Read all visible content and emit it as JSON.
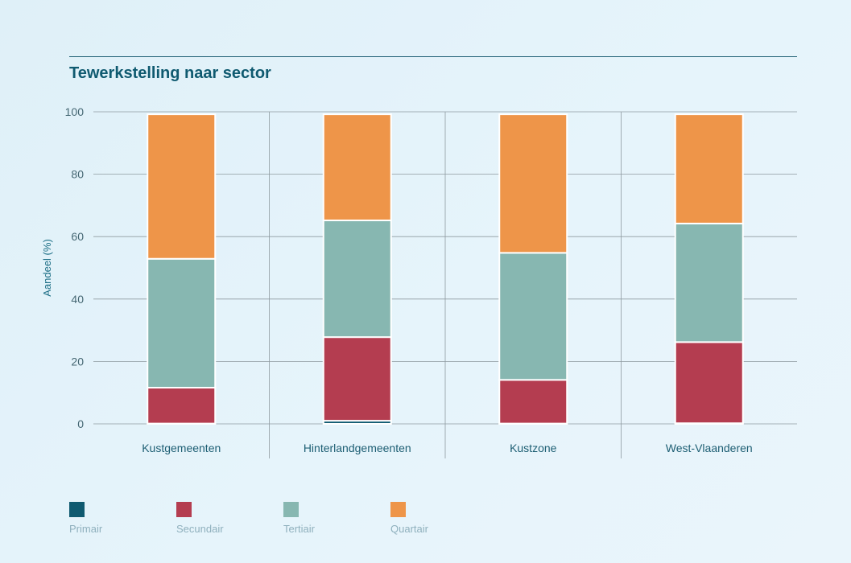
{
  "title": "Tewerkstelling naar sector",
  "chart_data": {
    "type": "bar",
    "stacked": true,
    "title": "Tewerkstelling naar sector",
    "ylabel": "Aandeel (%)",
    "xlabel": "",
    "ylim": [
      0,
      100
    ],
    "yticks": [
      0,
      20,
      40,
      60,
      80,
      100
    ],
    "grid": true,
    "legend_position": "bottom-left",
    "categories": [
      "Kustgemeenten",
      "Hinterlandgemeenten",
      "Kustzone",
      "West-Vlaanderen"
    ],
    "series": [
      {
        "name": "Primair",
        "color": "#0f5a70",
        "values": [
          0.1,
          1.0,
          0.1,
          0.2
        ]
      },
      {
        "name": "Secundair",
        "color": "#b43d50",
        "values": [
          11.5,
          26.8,
          14.0,
          26.0
        ]
      },
      {
        "name": "Tertiair",
        "color": "#87b7b1",
        "values": [
          41.3,
          37.4,
          40.7,
          38.0
        ]
      },
      {
        "name": "Quartair",
        "color": "#ee9549",
        "values": [
          46.3,
          34.0,
          44.4,
          35.0
        ]
      }
    ]
  }
}
